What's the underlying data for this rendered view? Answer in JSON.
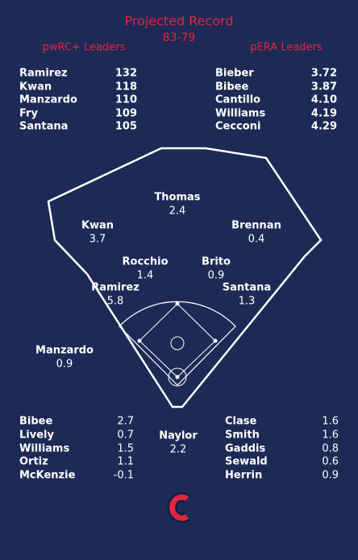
{
  "header": {
    "title": "Projected Record",
    "record": "83-79"
  },
  "left_leaders": {
    "title": "pwRC+ Leaders",
    "rows": [
      [
        "Ramirez",
        "132"
      ],
      [
        "Kwan",
        "118"
      ],
      [
        "Manzardo",
        "110"
      ],
      [
        "Fry",
        "109"
      ],
      [
        "Santana",
        "105"
      ]
    ]
  },
  "right_leaders": {
    "title": "pERA Leaders",
    "rows": [
      [
        "Bieber",
        "3.72"
      ],
      [
        "Bibee",
        "3.87"
      ],
      [
        "Cantillo",
        "4.10"
      ],
      [
        "Williams",
        "4.19"
      ],
      [
        "Cecconi",
        "4.29"
      ]
    ]
  },
  "fielders": [
    {
      "name": "Thomas",
      "value": "2.4",
      "color": "#ffffff"
    },
    {
      "name": "Kwan",
      "value": "3.7",
      "color": "#7fbf6e"
    },
    {
      "name": "Brennan",
      "value": "0.4",
      "color": "#f08c8c"
    },
    {
      "name": "Rocchio",
      "value": "1.4",
      "color": "#f7c6c6"
    },
    {
      "name": "Brito",
      "value": "0.9",
      "color": "#f5b0b0"
    },
    {
      "name": "Ramirez",
      "value": "5.8",
      "color": "#7fbf6e"
    },
    {
      "name": "Santana",
      "value": "1.3",
      "color": "#f7c0c0"
    },
    {
      "name": "Manzardo",
      "value": "0.9",
      "color": "#f5b0b0"
    },
    {
      "name": "Naylor",
      "value": "2.2",
      "color": "#ffffff"
    }
  ],
  "rotation": [
    {
      "name": "Bibee",
      "value": "2.7",
      "color": "#a9d69d"
    },
    {
      "name": "Lively",
      "value": "0.7",
      "color": "#f08c8c"
    },
    {
      "name": "Williams",
      "value": "1.5",
      "color": "#ffffff"
    },
    {
      "name": "Ortiz",
      "value": "1.1",
      "color": "#ffffff"
    },
    {
      "name": "McKenzie",
      "value": "-0.1",
      "color": "#e8323f"
    }
  ],
  "bullpen": [
    {
      "name": "Clase",
      "value": "1.6",
      "color": "#a9d69d"
    },
    {
      "name": "Smith",
      "value": "1.6",
      "color": "#a9d69d"
    },
    {
      "name": "Gaddis",
      "value": "0.8",
      "color": "#ffffff"
    },
    {
      "name": "Sewald",
      "value": "0.6",
      "color": "#f5b0b0"
    },
    {
      "name": "Herrin",
      "value": "0.9",
      "color": "#a9d69d"
    }
  ]
}
